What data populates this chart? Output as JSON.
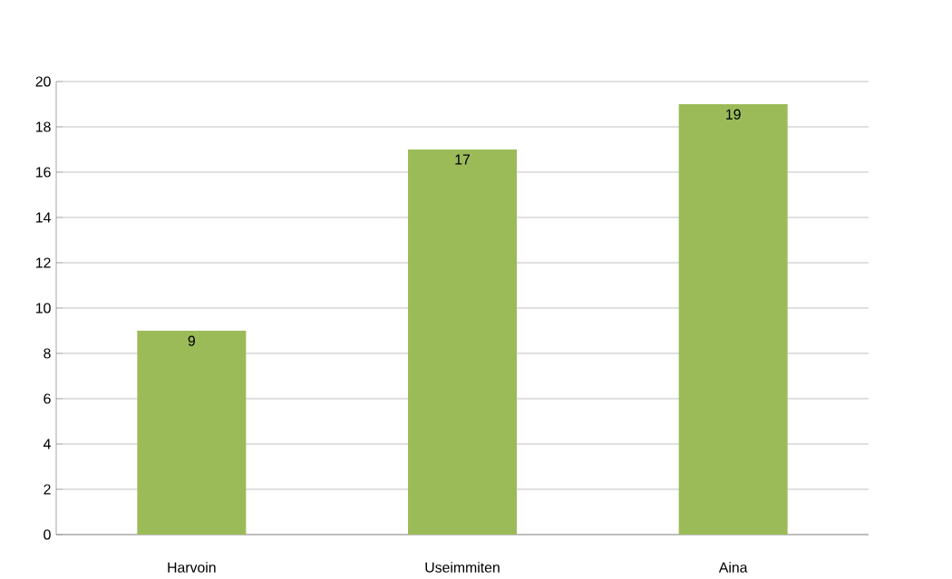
{
  "chart_data": {
    "type": "bar",
    "categories": [
      "Harvoin",
      "Useimmiten",
      "Aina"
    ],
    "values": [
      9,
      17,
      19
    ],
    "color": "#9bbb59",
    "ylim": [
      0,
      20
    ],
    "yticks": [
      0,
      2,
      4,
      6,
      8,
      10,
      12,
      14,
      16,
      18,
      20
    ],
    "grid": "y",
    "data_labels": true
  }
}
